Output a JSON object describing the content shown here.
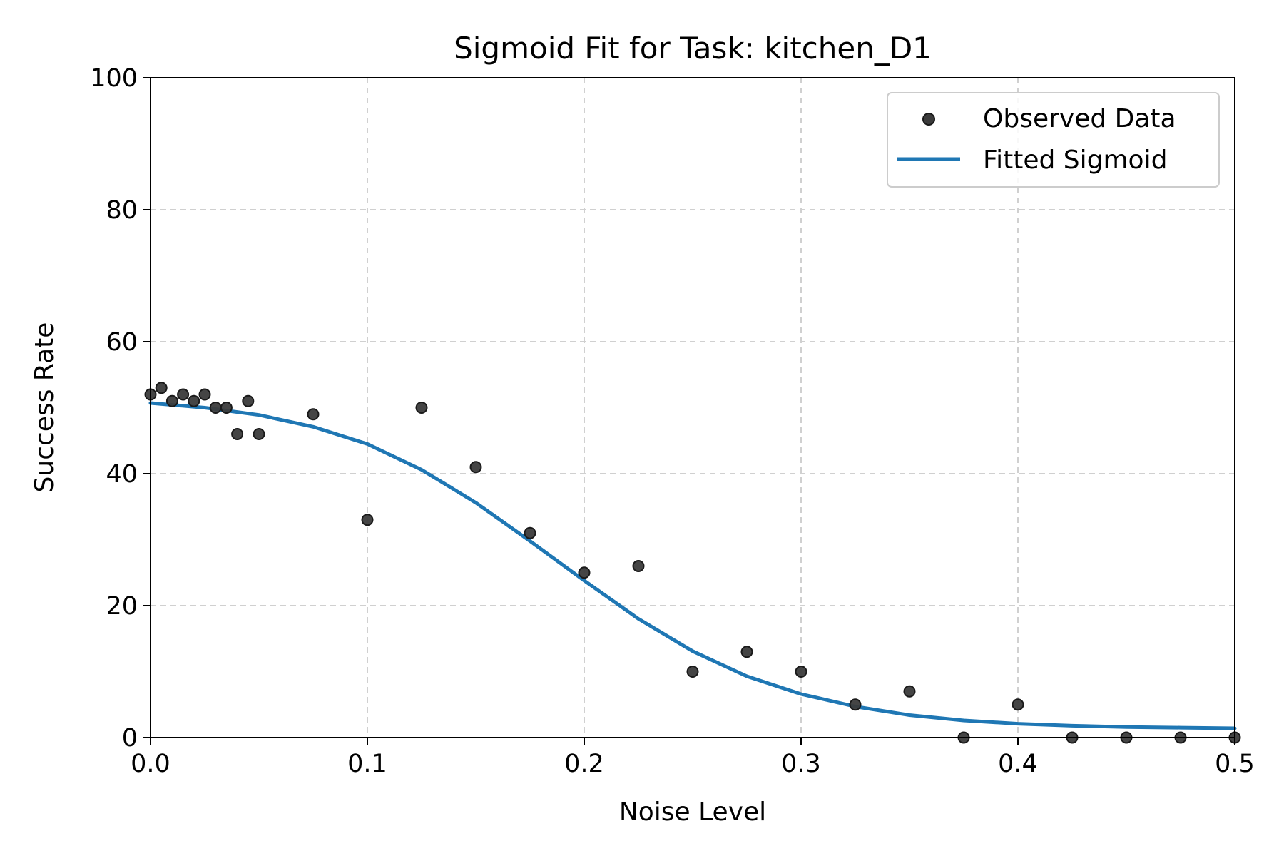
{
  "chart_data": {
    "type": "scatter",
    "title": "Sigmoid Fit for Task: kitchen_D1",
    "xlabel": "Noise Level",
    "ylabel": "Success Rate",
    "xlim": [
      0.0,
      0.5
    ],
    "ylim": [
      0,
      100
    ],
    "xticks": [
      0.0,
      0.1,
      0.2,
      0.3,
      0.4,
      0.5
    ],
    "xtick_labels": [
      "0.0",
      "0.1",
      "0.2",
      "0.3",
      "0.4",
      "0.5"
    ],
    "yticks": [
      0,
      20,
      40,
      60,
      80,
      100
    ],
    "ytick_labels": [
      "0",
      "20",
      "40",
      "60",
      "80",
      "100"
    ],
    "grid": true,
    "legend_position": "top-right",
    "series": [
      {
        "name": "Observed Data",
        "kind": "scatter",
        "color": "#3b3b3b",
        "x": [
          0.0,
          0.005,
          0.01,
          0.015,
          0.02,
          0.025,
          0.03,
          0.035,
          0.04,
          0.045,
          0.05,
          0.075,
          0.1,
          0.125,
          0.15,
          0.175,
          0.2,
          0.225,
          0.25,
          0.275,
          0.3,
          0.325,
          0.35,
          0.375,
          0.4,
          0.425,
          0.45,
          0.475,
          0.5
        ],
        "y": [
          52,
          53,
          51,
          52,
          51,
          52,
          50,
          50,
          46,
          51,
          46,
          49,
          33,
          50,
          41,
          31,
          25,
          26,
          10,
          13,
          10,
          5,
          7,
          0,
          5,
          0,
          0,
          0,
          0
        ]
      },
      {
        "name": "Fitted Sigmoid",
        "kind": "line",
        "color": "#1f77b4",
        "x": [
          0.0,
          0.025,
          0.05,
          0.075,
          0.1,
          0.125,
          0.15,
          0.175,
          0.2,
          0.225,
          0.25,
          0.275,
          0.3,
          0.325,
          0.35,
          0.375,
          0.4,
          0.425,
          0.45,
          0.475,
          0.5
        ],
        "y": [
          50.7,
          50.0,
          48.9,
          47.1,
          44.5,
          40.6,
          35.6,
          29.8,
          23.8,
          18.0,
          13.1,
          9.3,
          6.6,
          4.7,
          3.4,
          2.6,
          2.1,
          1.8,
          1.6,
          1.5,
          1.4
        ]
      }
    ]
  }
}
